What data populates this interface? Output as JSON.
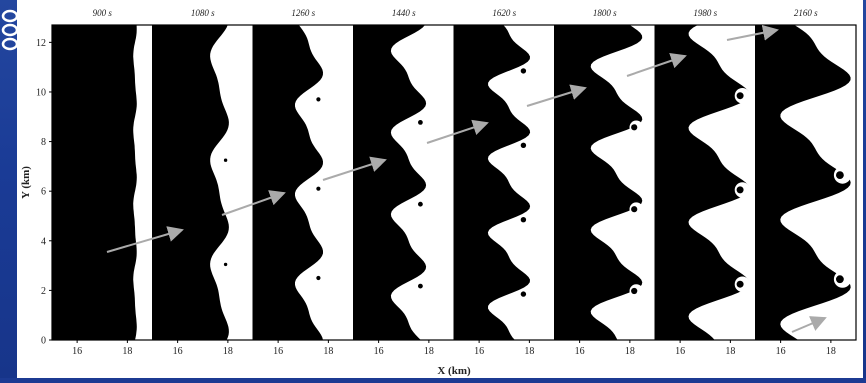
{
  "slide": {
    "background_color": "#1c3a92",
    "decoration": "spiral-binding-icon"
  },
  "figure": {
    "panel_times": [
      "900 s",
      "1080 s",
      "1260 s",
      "1440 s",
      "1620 s",
      "1800 s",
      "1980 s",
      "2160 s"
    ],
    "y_axis_label": "Y (km)",
    "y_ticks": [
      "0",
      "2",
      "4",
      "6",
      "8",
      "10",
      "12"
    ],
    "x_axis_label": "X (km)",
    "x_ticks": [
      "16",
      "18"
    ],
    "fluid_colors": {
      "dense": "#000000",
      "light": "#ffffff"
    },
    "annotation": "gray arrows track a vortex crest upward between successive panels"
  }
}
